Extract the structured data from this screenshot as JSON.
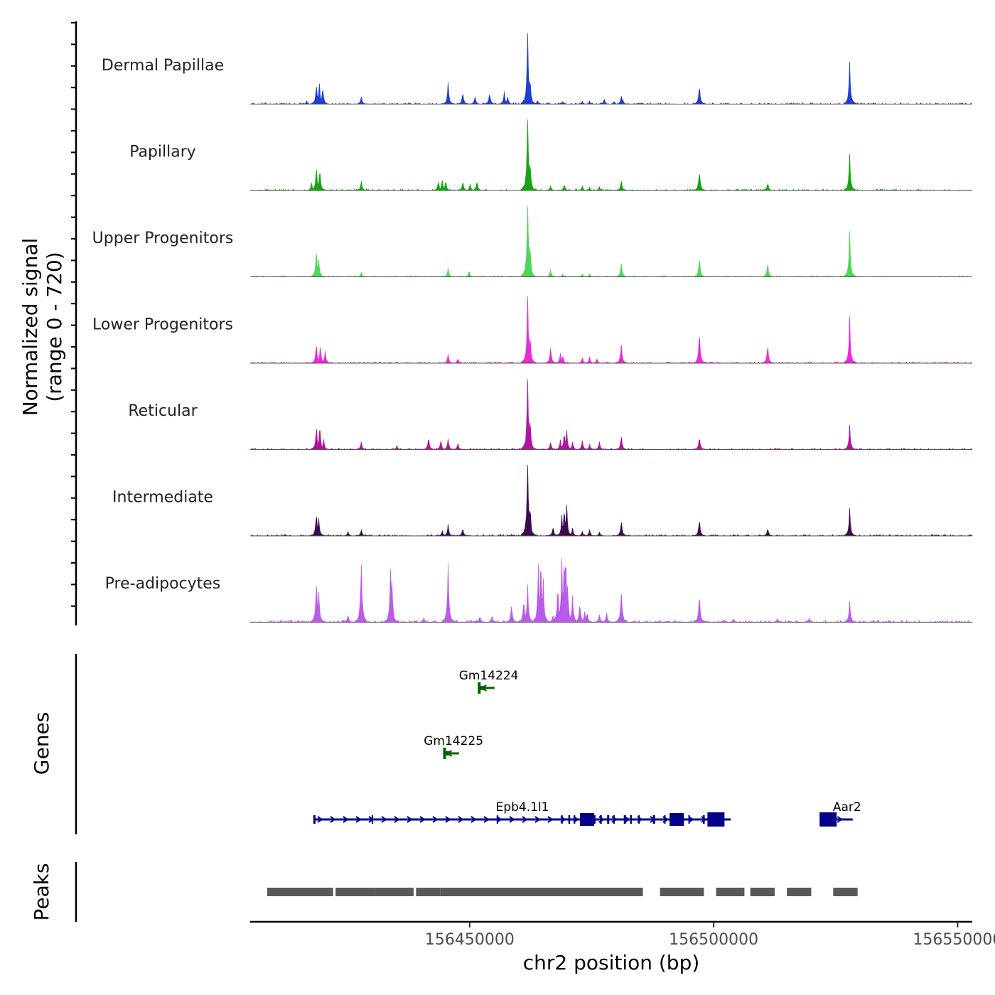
{
  "chart_data": {
    "type": "area",
    "ylabel": "Normalized signal",
    "ylabel_range": "(range 0 - 720)",
    "y_range": [
      0,
      720
    ],
    "xlabel": "chr2 position (bp)",
    "x_range": [
      156405000,
      156553000
    ],
    "x_ticks": [
      156450000,
      156500000,
      156550000
    ],
    "x_tick_labels": [
      "156450000",
      "156500000",
      "156550000"
    ],
    "baseline_color": "#555555",
    "peak_positions": [
      156411000,
      156415000,
      156417000,
      156419500,
      156425000,
      156428000,
      156433000,
      156436000,
      156441500,
      156446500,
      156448000,
      156448800,
      156449800,
      156452000,
      156454000,
      156458500,
      156460500,
      156462500,
      156464500,
      156469000,
      156472500,
      156474500,
      156476500,
      156478000,
      156479500,
      156481000,
      156483000,
      156491500,
      156495500,
      156503000,
      156503800,
      156510000,
      156517500,
      156527000
    ],
    "peak_halfwidth": 2500,
    "tracks": [
      {
        "name": "Dermal Papillae",
        "color": "#1f3fd1",
        "peaks": [
          [
            156418500,
            0.26
          ],
          [
            156419100,
            0.28
          ],
          [
            156419800,
            0.22
          ],
          [
            156416500,
            0.04
          ],
          [
            156427700,
            0.1
          ],
          [
            156445500,
            0.26
          ],
          [
            156448500,
            0.16
          ],
          [
            156451000,
            0.1
          ],
          [
            156454000,
            0.15
          ],
          [
            156457000,
            0.15
          ],
          [
            156457700,
            0.1
          ],
          [
            156461800,
            0.9
          ],
          [
            156462300,
            0.35
          ],
          [
            156463800,
            0.05
          ],
          [
            156469000,
            0.04
          ],
          [
            156473000,
            0.04
          ],
          [
            156474500,
            0.04
          ],
          [
            156477500,
            0.07
          ],
          [
            156479500,
            0.04
          ],
          [
            156481000,
            0.12
          ],
          [
            156481300,
            0.06
          ],
          [
            156497000,
            0.26
          ],
          [
            156527800,
            0.52
          ]
        ],
        "noise": 0.012
      },
      {
        "name": "Papillary",
        "color": "#16a510",
        "peaks": [
          [
            156418500,
            0.3
          ],
          [
            156419200,
            0.28
          ],
          [
            156417500,
            0.1
          ],
          [
            156427700,
            0.12
          ],
          [
            156443500,
            0.12
          ],
          [
            156444300,
            0.14
          ],
          [
            156445000,
            0.13
          ],
          [
            156448500,
            0.12
          ],
          [
            156450000,
            0.08
          ],
          [
            156451400,
            0.12
          ],
          [
            156461800,
            1.0
          ],
          [
            156462300,
            0.4
          ],
          [
            156466500,
            0.06
          ],
          [
            156469300,
            0.08
          ],
          [
            156473000,
            0.06
          ],
          [
            156474500,
            0.04
          ],
          [
            156476500,
            0.05
          ],
          [
            156481000,
            0.13
          ],
          [
            156497000,
            0.27
          ],
          [
            156511000,
            0.1
          ],
          [
            156527800,
            0.45
          ]
        ],
        "noise": 0.012
      },
      {
        "name": "Upper Progenitors",
        "color": "#4ed65a",
        "peaks": [
          [
            156418500,
            0.36
          ],
          [
            156419000,
            0.22
          ],
          [
            156427700,
            0.06
          ],
          [
            156445500,
            0.11
          ],
          [
            156449800,
            0.08
          ],
          [
            156461800,
            1.0
          ],
          [
            156462300,
            0.45
          ],
          [
            156466500,
            0.1
          ],
          [
            156469000,
            0.04
          ],
          [
            156473000,
            0.04
          ],
          [
            156474500,
            0.04
          ],
          [
            156481000,
            0.18
          ],
          [
            156497000,
            0.25
          ],
          [
            156511000,
            0.18
          ],
          [
            156527800,
            0.55
          ]
        ],
        "noise": 0.01
      },
      {
        "name": "Lower Progenitors",
        "color": "#ea29d6",
        "peaks": [
          [
            156418500,
            0.25
          ],
          [
            156419300,
            0.22
          ],
          [
            156420300,
            0.15
          ],
          [
            156445500,
            0.11
          ],
          [
            156447500,
            0.06
          ],
          [
            156461800,
            0.8
          ],
          [
            156462300,
            0.38
          ],
          [
            156466500,
            0.2
          ],
          [
            156468500,
            0.12
          ],
          [
            156469000,
            0.1
          ],
          [
            156473000,
            0.07
          ],
          [
            156474500,
            0.08
          ],
          [
            156476000,
            0.06
          ],
          [
            156481000,
            0.25
          ],
          [
            156497000,
            0.4
          ],
          [
            156511000,
            0.23
          ],
          [
            156527800,
            0.53
          ]
        ],
        "noise": 0.012
      },
      {
        "name": "Reticular",
        "color": "#b0149e",
        "peaks": [
          [
            156418500,
            0.3
          ],
          [
            156419200,
            0.32
          ],
          [
            156420000,
            0.12
          ],
          [
            156427700,
            0.1
          ],
          [
            156435000,
            0.05
          ],
          [
            156441500,
            0.16
          ],
          [
            156444000,
            0.12
          ],
          [
            156445500,
            0.13
          ],
          [
            156447500,
            0.08
          ],
          [
            156461800,
            0.9
          ],
          [
            156462300,
            0.42
          ],
          [
            156466500,
            0.1
          ],
          [
            156468500,
            0.12
          ],
          [
            156469300,
            0.22
          ],
          [
            156469800,
            0.25
          ],
          [
            156471000,
            0.1
          ],
          [
            156473000,
            0.12
          ],
          [
            156474500,
            0.07
          ],
          [
            156476500,
            0.1
          ],
          [
            156481000,
            0.18
          ],
          [
            156497000,
            0.17
          ],
          [
            156527800,
            0.3
          ]
        ],
        "noise": 0.012
      },
      {
        "name": "Intermediate",
        "color": "#3d0a4f",
        "peaks": [
          [
            156418500,
            0.3
          ],
          [
            156419000,
            0.22
          ],
          [
            156425000,
            0.06
          ],
          [
            156427700,
            0.08
          ],
          [
            156444300,
            0.07
          ],
          [
            156445500,
            0.14
          ],
          [
            156448500,
            0.1
          ],
          [
            156461800,
            1.0
          ],
          [
            156462300,
            0.4
          ],
          [
            156467000,
            0.12
          ],
          [
            156468800,
            0.25
          ],
          [
            156469300,
            0.36
          ],
          [
            156469800,
            0.4
          ],
          [
            156471000,
            0.1
          ],
          [
            156473000,
            0.06
          ],
          [
            156474500,
            0.08
          ],
          [
            156476500,
            0.05
          ],
          [
            156481000,
            0.2
          ],
          [
            156497000,
            0.22
          ],
          [
            156511000,
            0.1
          ],
          [
            156527800,
            0.33
          ]
        ],
        "noise": 0.012
      },
      {
        "name": "Pre-adipocytes",
        "color": "#b95be8",
        "peaks": [
          [
            156418500,
            0.55
          ],
          [
            156419000,
            0.4
          ],
          [
            156425000,
            0.1
          ],
          [
            156427700,
            0.8
          ],
          [
            156433700,
            0.66
          ],
          [
            156434000,
            0.5
          ],
          [
            156445500,
            0.7
          ],
          [
            156440500,
            0.06
          ],
          [
            156452000,
            0.08
          ],
          [
            156454500,
            0.08
          ],
          [
            156458500,
            0.22
          ],
          [
            156461000,
            0.3
          ],
          [
            156461800,
            0.45
          ],
          [
            156464000,
            0.7
          ],
          [
            156464500,
            0.85
          ],
          [
            156465000,
            0.55
          ],
          [
            156467000,
            0.1
          ],
          [
            156468000,
            0.5
          ],
          [
            156468800,
            0.75
          ],
          [
            156469300,
            0.9
          ],
          [
            156469600,
            0.95
          ],
          [
            156470000,
            0.5
          ],
          [
            156471000,
            0.35
          ],
          [
            156472500,
            0.25
          ],
          [
            156473500,
            0.15
          ],
          [
            156474000,
            0.12
          ],
          [
            156476500,
            0.1
          ],
          [
            156478000,
            0.12
          ],
          [
            156481000,
            0.42
          ],
          [
            156497000,
            0.36
          ],
          [
            156504000,
            0.05
          ],
          [
            156513000,
            0.05
          ],
          [
            156519500,
            0.05
          ],
          [
            156527800,
            0.26
          ]
        ],
        "noise": 0.018
      }
    ],
    "genes_label": "Genes",
    "genes": [
      {
        "name": "Gm14224",
        "start": 156451800,
        "end": 156455100,
        "strand": "-",
        "color": "#006400",
        "row": 0
      },
      {
        "name": "Gm14225",
        "start": 156444700,
        "end": 156447800,
        "strand": "-",
        "color": "#006400",
        "row": 1
      },
      {
        "name": "Epb4.1l1",
        "start": 156418100,
        "end": 156503500,
        "strand": "+",
        "color": "#00008b",
        "row": 2
      },
      {
        "name": "Aar2",
        "start": 156522000,
        "end": 156528500,
        "strand": "+",
        "color": "#00008b",
        "row": 2
      }
    ],
    "peaks_label": "Peaks",
    "peaks_color": "#595959"
  }
}
